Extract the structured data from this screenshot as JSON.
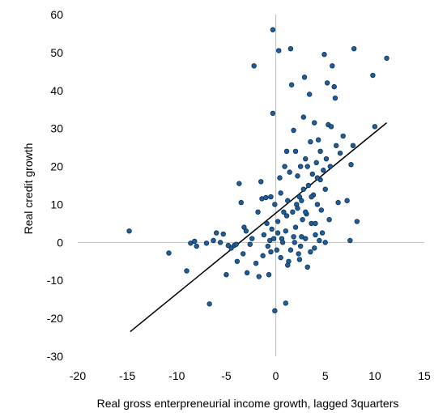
{
  "chart_data": {
    "type": "scatter",
    "title": "",
    "xlabel": "Real gross enterpreneurial income growth,  lagged 3quarters",
    "ylabel": "Real credit growth",
    "xlim": [
      -20,
      15
    ],
    "ylim": [
      -30,
      60
    ],
    "xticks": [
      -20,
      -15,
      -10,
      -5,
      0,
      5,
      10,
      15
    ],
    "yticks": [
      -30,
      -20,
      -10,
      0,
      10,
      20,
      30,
      40,
      50,
      60
    ],
    "grid": false,
    "axes_cross_at_zero": true,
    "point_color": "#1f5f99",
    "point_edge_color": "#0b2e55",
    "trendline": {
      "x": [
        -14.7,
        11.2
      ],
      "y": [
        -23.5,
        31.5
      ],
      "color": "#000000"
    },
    "points": [
      [
        -14.8,
        3.0
      ],
      [
        -10.8,
        -2.8
      ],
      [
        -9.0,
        -7.5
      ],
      [
        -8.6,
        -0.2
      ],
      [
        -8.2,
        0.3
      ],
      [
        -8.0,
        -1.0
      ],
      [
        -7.0,
        -0.2
      ],
      [
        -6.7,
        -16.2
      ],
      [
        -6.3,
        0.5
      ],
      [
        -6.0,
        2.5
      ],
      [
        -5.6,
        0.0
      ],
      [
        -5.3,
        2.2
      ],
      [
        -5.0,
        -8.5
      ],
      [
        -4.8,
        -0.8
      ],
      [
        -4.5,
        -1.5
      ],
      [
        -4.2,
        -0.8
      ],
      [
        -4.0,
        -0.5
      ],
      [
        -3.9,
        -5.0
      ],
      [
        -3.7,
        15.5
      ],
      [
        -3.5,
        10.5
      ],
      [
        -3.3,
        -3.0
      ],
      [
        -3.2,
        4.0
      ],
      [
        -3.0,
        3.0
      ],
      [
        -2.9,
        -8.0
      ],
      [
        -2.6,
        -0.5
      ],
      [
        -2.4,
        1.0
      ],
      [
        -2.2,
        46.5
      ],
      [
        -2.0,
        -5.5
      ],
      [
        -1.8,
        8.0
      ],
      [
        -1.7,
        -9.0
      ],
      [
        -1.5,
        16.0
      ],
      [
        -1.4,
        11.5
      ],
      [
        -1.3,
        -3.5
      ],
      [
        -1.2,
        2.0
      ],
      [
        -1.0,
        11.8
      ],
      [
        -0.9,
        5.0
      ],
      [
        -0.8,
        -1.0
      ],
      [
        -0.7,
        -8.5
      ],
      [
        -0.6,
        0.5
      ],
      [
        -0.5,
        12.0
      ],
      [
        -0.4,
        3.5
      ],
      [
        -0.3,
        34.0
      ],
      [
        -0.3,
        56.0
      ],
      [
        -0.2,
        1.0
      ],
      [
        -0.1,
        10.0
      ],
      [
        -0.1,
        -18.0
      ],
      [
        0.1,
        -2.0
      ],
      [
        0.2,
        5.5
      ],
      [
        0.3,
        50.5
      ],
      [
        0.4,
        17.0
      ],
      [
        0.5,
        13.0
      ],
      [
        0.6,
        1.0
      ],
      [
        0.7,
        0.0
      ],
      [
        0.8,
        8.0
      ],
      [
        0.9,
        20.0
      ],
      [
        1.0,
        -16.0
      ],
      [
        1.1,
        7.0
      ],
      [
        1.2,
        11.0
      ],
      [
        1.3,
        -5.0
      ],
      [
        1.4,
        18.5
      ],
      [
        1.5,
        51.0
      ],
      [
        1.6,
        41.5
      ],
      [
        1.7,
        8.0
      ],
      [
        1.8,
        29.5
      ],
      [
        1.9,
        0.0
      ],
      [
        2.0,
        24.0
      ],
      [
        2.1,
        10.0
      ],
      [
        2.2,
        17.5
      ],
      [
        2.3,
        -3.0
      ],
      [
        2.4,
        12.0
      ],
      [
        2.5,
        20.0
      ],
      [
        2.6,
        1.5
      ],
      [
        2.7,
        6.0
      ],
      [
        2.8,
        33.0
      ],
      [
        2.9,
        43.5
      ],
      [
        3.0,
        22.0
      ],
      [
        3.1,
        7.5
      ],
      [
        3.2,
        -6.5
      ],
      [
        3.3,
        15.0
      ],
      [
        3.4,
        39.0
      ],
      [
        3.5,
        26.5
      ],
      [
        3.6,
        5.0
      ],
      [
        3.7,
        18.0
      ],
      [
        3.8,
        12.5
      ],
      [
        3.9,
        31.5
      ],
      [
        4.0,
        2.0
      ],
      [
        4.1,
        21.0
      ],
      [
        4.2,
        10.0
      ],
      [
        4.3,
        27.0
      ],
      [
        4.4,
        0.5
      ],
      [
        4.5,
        16.5
      ],
      [
        4.6,
        8.5
      ],
      [
        4.7,
        2.5
      ],
      [
        4.8,
        19.0
      ],
      [
        4.9,
        49.5
      ],
      [
        5.0,
        14.0
      ],
      [
        5.1,
        22.0
      ],
      [
        5.2,
        42.0
      ],
      [
        5.3,
        31.0
      ],
      [
        5.4,
        6.0
      ],
      [
        5.5,
        20.0
      ],
      [
        5.6,
        30.5
      ],
      [
        5.7,
        46.5
      ],
      [
        5.9,
        41.0
      ],
      [
        6.0,
        38.0
      ],
      [
        6.1,
        25.5
      ],
      [
        6.3,
        10.5
      ],
      [
        6.5,
        23.5
      ],
      [
        6.8,
        28.0
      ],
      [
        7.2,
        11.0
      ],
      [
        7.5,
        0.5
      ],
      [
        7.6,
        20.5
      ],
      [
        7.8,
        25.5
      ],
      [
        7.9,
        51.0
      ],
      [
        8.2,
        5.5
      ],
      [
        9.8,
        44.0
      ],
      [
        10.0,
        30.5
      ],
      [
        11.2,
        48.5
      ],
      [
        1.0,
        3.0
      ],
      [
        1.5,
        -2.0
      ],
      [
        2.0,
        4.0
      ],
      [
        2.5,
        -1.0
      ],
      [
        3.0,
        1.0
      ],
      [
        3.5,
        -2.5
      ],
      [
        4.0,
        5.0
      ],
      [
        2.2,
        9.0
      ],
      [
        1.2,
        -6.0
      ],
      [
        2.8,
        14.0
      ],
      [
        3.6,
        12.0
      ],
      [
        0.5,
        -4.0
      ],
      [
        4.5,
        24.0
      ],
      [
        3.0,
        8.0
      ],
      [
        2.4,
        -4.5
      ],
      [
        1.8,
        1.5
      ],
      [
        -0.5,
        -2.5
      ],
      [
        0.2,
        2.5
      ],
      [
        1.1,
        24.0
      ],
      [
        2.6,
        11.0
      ],
      [
        3.2,
        20.0
      ],
      [
        3.9,
        -1.5
      ],
      [
        4.2,
        17.0
      ],
      [
        5.0,
        0.0
      ]
    ]
  }
}
